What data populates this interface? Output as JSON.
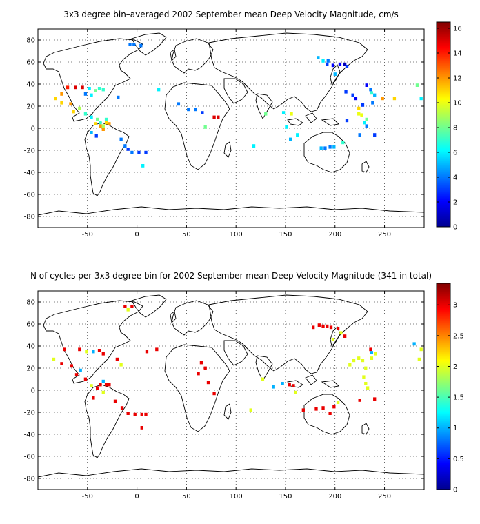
{
  "chart_data": [
    {
      "type": "heatmap",
      "title": "3x3 degree bin–averaged 2002 September mean Deep Velocity Magnitude, cm/s",
      "xlim": [
        -100,
        290
      ],
      "ylim": [
        -90,
        90
      ],
      "xticks": [
        -50,
        0,
        50,
        100,
        150,
        200,
        250
      ],
      "yticks": [
        -80,
        -60,
        -40,
        -20,
        0,
        20,
        40,
        60,
        80
      ],
      "grid": true,
      "colorbar": {
        "min": 0,
        "max": 16.5,
        "ticks": [
          0,
          2,
          4,
          6,
          8,
          10,
          12,
          14,
          16
        ]
      },
      "points": [
        [
          -7,
          76,
          4
        ],
        [
          -3,
          76,
          4
        ],
        [
          4,
          75,
          4
        ],
        [
          -70,
          37,
          14
        ],
        [
          -62,
          37,
          15
        ],
        [
          -55,
          37,
          15
        ],
        [
          -48,
          36,
          6
        ],
        [
          -42,
          34,
          8
        ],
        [
          -38,
          36,
          7
        ],
        [
          -34,
          35,
          7
        ],
        [
          -52,
          31,
          4
        ],
        [
          -46,
          30,
          6
        ],
        [
          -76,
          31,
          12
        ],
        [
          -82,
          27,
          11
        ],
        [
          -76,
          23,
          11
        ],
        [
          -67,
          22,
          12
        ],
        [
          -58,
          18,
          9
        ],
        [
          -64,
          15,
          11
        ],
        [
          -52,
          13,
          7
        ],
        [
          -46,
          10,
          6
        ],
        [
          -40,
          8,
          8
        ],
        [
          -37,
          5,
          7
        ],
        [
          -34,
          2,
          9
        ],
        [
          -31,
          8,
          7
        ],
        [
          -42,
          4,
          11
        ],
        [
          -37,
          2,
          12
        ],
        [
          -31,
          5,
          11
        ],
        [
          -28,
          4,
          12
        ],
        [
          -46,
          -4,
          5
        ],
        [
          -41,
          -7,
          3
        ],
        [
          -34,
          -1,
          12
        ],
        [
          -16,
          -10,
          4
        ],
        [
          -12,
          -16,
          4
        ],
        [
          -9,
          -19,
          3
        ],
        [
          -5,
          -22,
          4
        ],
        [
          2,
          -22,
          3
        ],
        [
          9,
          -22,
          3
        ],
        [
          6,
          -34,
          6
        ],
        [
          -19,
          28,
          4
        ],
        [
          22,
          35,
          6
        ],
        [
          42,
          22,
          4
        ],
        [
          52,
          17,
          4
        ],
        [
          59,
          17,
          4
        ],
        [
          66,
          14,
          3
        ],
        [
          78,
          10,
          15
        ],
        [
          82,
          10,
          15
        ],
        [
          69,
          1,
          8
        ],
        [
          130,
          13,
          8
        ],
        [
          148,
          14,
          6
        ],
        [
          156,
          13,
          10
        ],
        [
          151,
          1,
          6
        ],
        [
          162,
          -6,
          6
        ],
        [
          155,
          -10,
          5
        ],
        [
          118,
          -16,
          6
        ],
        [
          183,
          64,
          5
        ],
        [
          188,
          61,
          6
        ],
        [
          192,
          58,
          3
        ],
        [
          198,
          57,
          2
        ],
        [
          193,
          61,
          4
        ],
        [
          205,
          58,
          2
        ],
        [
          210,
          58,
          1
        ],
        [
          212,
          56,
          3
        ],
        [
          200,
          49,
          5
        ],
        [
          211,
          33,
          3
        ],
        [
          218,
          30,
          3
        ],
        [
          221,
          27,
          2
        ],
        [
          228,
          21,
          3
        ],
        [
          224,
          18,
          11
        ],
        [
          224,
          13,
          10
        ],
        [
          227,
          12,
          10
        ],
        [
          232,
          8,
          8
        ],
        [
          230,
          5,
          6
        ],
        [
          232,
          2,
          4
        ],
        [
          232,
          39,
          2
        ],
        [
          236,
          35,
          4
        ],
        [
          237,
          32,
          7
        ],
        [
          240,
          30,
          5
        ],
        [
          238,
          23,
          4
        ],
        [
          225,
          -6,
          4
        ],
        [
          240,
          -6,
          3
        ],
        [
          186,
          -18,
          5
        ],
        [
          190,
          -18,
          4
        ],
        [
          195,
          -17,
          4
        ],
        [
          199,
          -17,
          5
        ],
        [
          208,
          -13,
          7
        ],
        [
          212,
          7,
          3
        ],
        [
          248,
          27,
          12
        ],
        [
          260,
          27,
          11
        ],
        [
          283,
          39,
          8
        ],
        [
          287,
          27,
          6
        ]
      ]
    },
    {
      "type": "heatmap",
      "title": "N of cycles per 3x3 degree bin for 2002 September mean Deep Velocity Magnitude (341 in total)",
      "xlim": [
        -100,
        290
      ],
      "ylim": [
        -90,
        90
      ],
      "xticks": [
        -50,
        0,
        50,
        100,
        150,
        200,
        250
      ],
      "yticks": [
        -80,
        -60,
        -40,
        -20,
        0,
        20,
        40,
        60,
        80
      ],
      "grid": true,
      "colorbar": {
        "min": 0,
        "max": 3.35,
        "ticks": [
          0,
          0.5,
          1,
          1.5,
          2,
          2.5,
          3
        ]
      },
      "points": [
        [
          -12,
          76,
          3
        ],
        [
          -9,
          73,
          2
        ],
        [
          -5,
          76,
          3
        ],
        [
          -73,
          37,
          3
        ],
        [
          -58,
          37,
          3
        ],
        [
          -51,
          35,
          2
        ],
        [
          -44,
          35,
          1
        ],
        [
          -38,
          36,
          3
        ],
        [
          -34,
          33,
          3
        ],
        [
          -84,
          28,
          2
        ],
        [
          -76,
          24,
          3
        ],
        [
          -66,
          22,
          3
        ],
        [
          -57,
          18,
          1
        ],
        [
          -61,
          14,
          3
        ],
        [
          -52,
          10,
          3
        ],
        [
          -46,
          4,
          2
        ],
        [
          -37,
          5,
          3
        ],
        [
          -31,
          5,
          3
        ],
        [
          -28,
          5,
          3
        ],
        [
          -34,
          8,
          1
        ],
        [
          -40,
          2,
          3
        ],
        [
          -44,
          -7,
          3
        ],
        [
          -34,
          -2,
          2
        ],
        [
          -22,
          -10,
          3
        ],
        [
          -15,
          -16,
          3
        ],
        [
          -9,
          -21,
          3
        ],
        [
          -2,
          -22,
          3
        ],
        [
          5,
          -22,
          3
        ],
        [
          9,
          -22,
          3
        ],
        [
          5,
          -34,
          3
        ],
        [
          -20,
          28,
          3
        ],
        [
          -16,
          23,
          2
        ],
        [
          10,
          35,
          3
        ],
        [
          20,
          37,
          3
        ],
        [
          65,
          25,
          3
        ],
        [
          69,
          20,
          3
        ],
        [
          62,
          15,
          3
        ],
        [
          72,
          7,
          3
        ],
        [
          78,
          -3,
          3
        ],
        [
          127,
          10,
          2
        ],
        [
          138,
          3,
          1
        ],
        [
          147,
          6,
          1
        ],
        [
          154,
          5,
          3
        ],
        [
          158,
          4,
          3
        ],
        [
          160,
          -2,
          2
        ],
        [
          115,
          -18,
          2
        ],
        [
          168,
          -18,
          3
        ],
        [
          178,
          57,
          3
        ],
        [
          184,
          59,
          3
        ],
        [
          188,
          58,
          3
        ],
        [
          192,
          58,
          3
        ],
        [
          196,
          57,
          3
        ],
        [
          203,
          56,
          3
        ],
        [
          206,
          52,
          2
        ],
        [
          210,
          49,
          3
        ],
        [
          198,
          46,
          2
        ],
        [
          215,
          23,
          2
        ],
        [
          219,
          27,
          2
        ],
        [
          224,
          29,
          2
        ],
        [
          228,
          27,
          2
        ],
        [
          231,
          20,
          2
        ],
        [
          229,
          12,
          2
        ],
        [
          231,
          6,
          2
        ],
        [
          233,
          2,
          2
        ],
        [
          236,
          37,
          3
        ],
        [
          237,
          34,
          1
        ],
        [
          241,
          33,
          2
        ],
        [
          237,
          29,
          2
        ],
        [
          225,
          -9,
          3
        ],
        [
          240,
          -8,
          3
        ],
        [
          199,
          -15,
          3
        ],
        [
          195,
          -21,
          3
        ],
        [
          188,
          -16,
          3
        ],
        [
          181,
          -17,
          3
        ],
        [
          203,
          -11,
          2
        ],
        [
          280,
          42,
          1
        ],
        [
          287,
          37,
          2
        ],
        [
          285,
          28,
          2
        ]
      ]
    }
  ]
}
